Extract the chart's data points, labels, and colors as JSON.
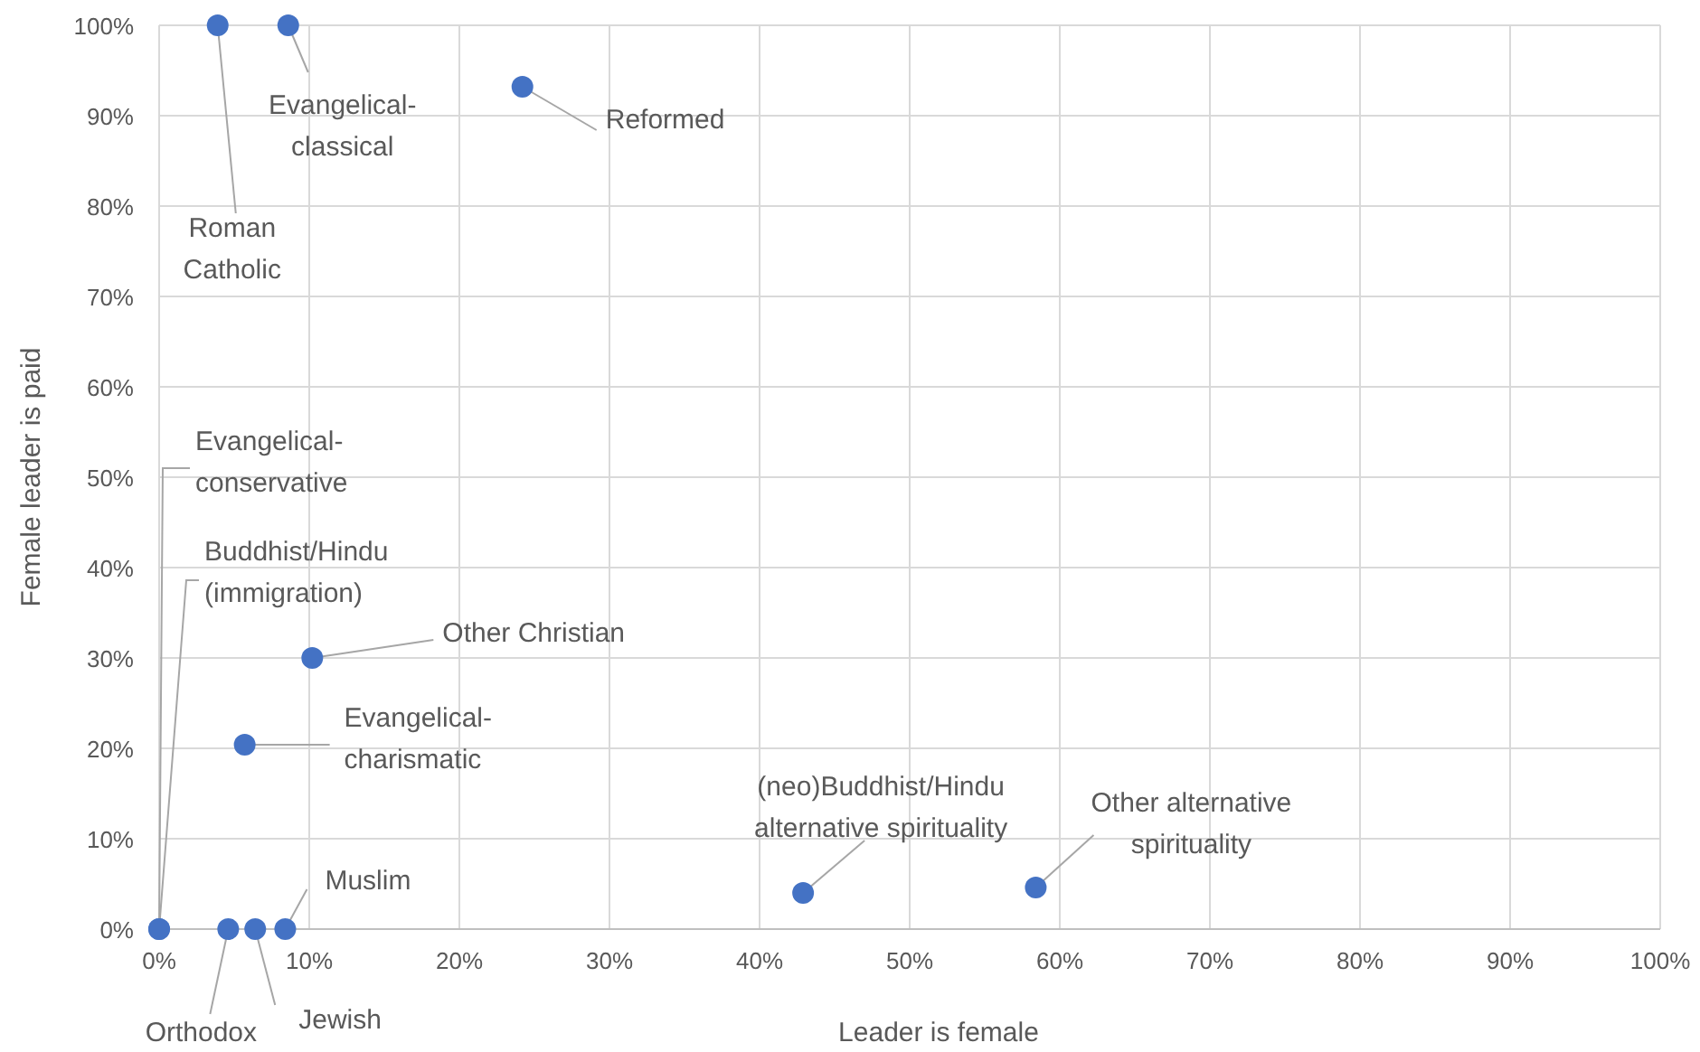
{
  "chart_data": {
    "type": "scatter",
    "xlabel": "Leader is female",
    "ylabel": "Female leader is paid",
    "x": [
      3.9,
      8.6,
      24.2,
      0,
      0,
      10.2,
      5.7,
      42.9,
      58.4,
      4.6,
      6.4,
      8.4
    ],
    "values": [
      100,
      100,
      93.2,
      0,
      0,
      30,
      20.4,
      4,
      4.6,
      0,
      0,
      0
    ],
    "color": "#4472c4",
    "marker": "circle",
    "xlim": [
      0,
      100
    ],
    "ylim": [
      0,
      100
    ],
    "xticks": [
      {
        "value": 0,
        "label": "0%"
      },
      {
        "value": 10,
        "label": "10%"
      },
      {
        "value": 20,
        "label": "20%"
      },
      {
        "value": 30,
        "label": "30%"
      },
      {
        "value": 40,
        "label": "40%"
      },
      {
        "value": 50,
        "label": "50%"
      },
      {
        "value": 60,
        "label": "60%"
      },
      {
        "value": 70,
        "label": "70%"
      },
      {
        "value": 80,
        "label": "80%"
      },
      {
        "value": 90,
        "label": "90%"
      },
      {
        "value": 100,
        "label": "100%"
      }
    ],
    "yticks": [
      {
        "value": 0,
        "label": "0%"
      },
      {
        "value": 10,
        "label": "10%"
      },
      {
        "value": 20,
        "label": "20%"
      },
      {
        "value": 30,
        "label": "30%"
      },
      {
        "value": 40,
        "label": "40%"
      },
      {
        "value": 50,
        "label": "50%"
      },
      {
        "value": 60,
        "label": "60%"
      },
      {
        "value": 70,
        "label": "70%"
      },
      {
        "value": 80,
        "label": "80%"
      },
      {
        "value": 90,
        "label": "90%"
      },
      {
        "value": 100,
        "label": "100%"
      }
    ],
    "grid": true,
    "annotations": [
      {
        "text": "Roman\nCatholic",
        "x": 3.9,
        "y": 100
      },
      {
        "text": "Evangelical-\nclassical",
        "x": 8.6,
        "y": 100
      },
      {
        "text": "Reformed",
        "x": 24.2,
        "y": 93.2
      },
      {
        "text": "Evangelical-\nconservative",
        "x": 0,
        "y": 0
      },
      {
        "text": "Buddhist/Hindu\n(immigration)",
        "x": 0,
        "y": 0
      },
      {
        "text": "Other Christian",
        "x": 10.2,
        "y": 30
      },
      {
        "text": "Evangelical-\ncharismatic",
        "x": 5.7,
        "y": 20.4
      },
      {
        "text": "(neo)Buddhist/Hindu\nalternative spirituality",
        "x": 42.9,
        "y": 4
      },
      {
        "text": "Other alternative\nspirituality",
        "x": 58.4,
        "y": 4.6
      },
      {
        "text": "Orthodox",
        "x": 4.6,
        "y": 0
      },
      {
        "text": "Jewish",
        "x": 6.4,
        "y": 0
      },
      {
        "text": "Muslim",
        "x": 8.4,
        "y": 0
      }
    ]
  }
}
